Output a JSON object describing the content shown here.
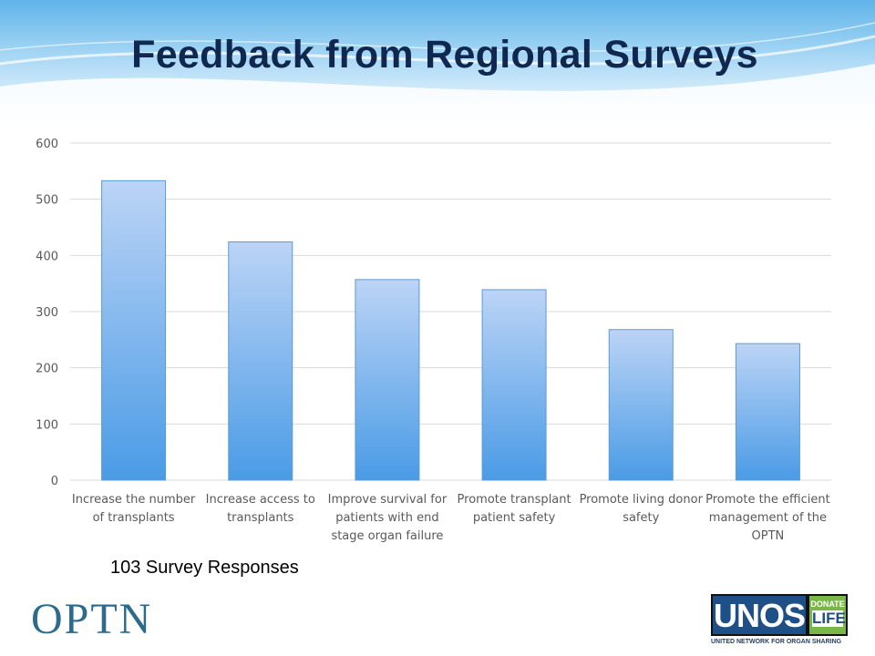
{
  "slide": {
    "title": "Feedback from Regional Surveys",
    "note": "103 Survey Responses"
  },
  "logos": {
    "optn_text": "OPTN",
    "unos_text": "UNOS",
    "donate_top": "DONATE",
    "donate_bottom": "LIFE",
    "unos_tagline": "UNITED NETWORK FOR ORGAN SHARING"
  },
  "colors": {
    "title": "#10284f",
    "bar_top": "#bcd4f6",
    "bar_bottom": "#4a9be6",
    "bar_border": "#5b9bd5",
    "grid": "#d9d9d9"
  },
  "chart_data": {
    "type": "bar",
    "title": "",
    "xlabel": "",
    "ylabel": "",
    "ylim": [
      0,
      600
    ],
    "yticks": [
      0,
      100,
      200,
      300,
      400,
      500,
      600
    ],
    "grid": true,
    "categories": [
      [
        "Increase the number",
        "of transplants"
      ],
      [
        "Increase access to",
        "transplants"
      ],
      [
        "Improve survival for",
        "patients with end",
        "stage organ failure"
      ],
      [
        "Promote transplant",
        "patient safety"
      ],
      [
        "Promote living donor",
        "safety"
      ],
      [
        "Promote the efficient",
        "management of the",
        "OPTN"
      ]
    ],
    "values": [
      533,
      424,
      357,
      339,
      268,
      243
    ]
  }
}
